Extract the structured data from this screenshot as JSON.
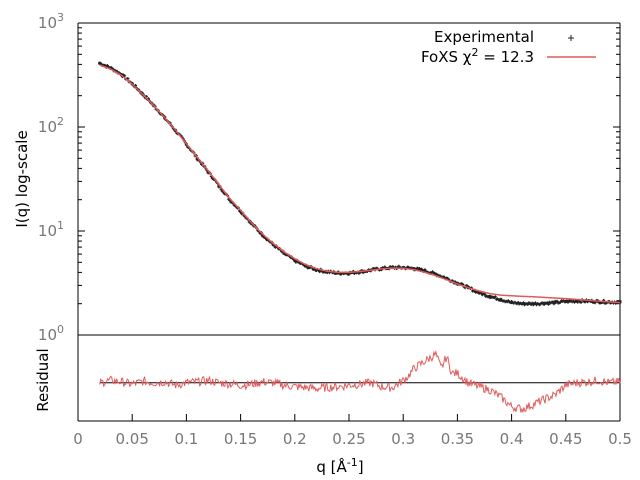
{
  "chart_data": [
    {
      "type": "scatter",
      "panel": "top",
      "ylabel": "I(q) log-scale",
      "yscale": "log",
      "ylim": [
        1,
        1000
      ],
      "xlim": [
        0,
        0.5
      ],
      "y_ticks": [
        {
          "value": 1,
          "base": "10",
          "exp": "0"
        },
        {
          "value": 10,
          "base": "10",
          "exp": "1"
        },
        {
          "value": 100,
          "base": "10",
          "exp": "2"
        },
        {
          "value": 1000,
          "base": "10",
          "exp": "3"
        }
      ],
      "legend": {
        "placement": "top-right",
        "experimental_label": "Experimental",
        "fit_label_prefix": "FoXS χ",
        "fit_label_exp": "2",
        "fit_label_suffix": " = 12.3"
      },
      "series": [
        {
          "name": "Experimental",
          "color": "#222222",
          "x": [
            0.02,
            0.03,
            0.04,
            0.05,
            0.06,
            0.07,
            0.08,
            0.09,
            0.1,
            0.11,
            0.12,
            0.13,
            0.14,
            0.15,
            0.16,
            0.17,
            0.18,
            0.19,
            0.2,
            0.21,
            0.22,
            0.23,
            0.24,
            0.25,
            0.26,
            0.27,
            0.28,
            0.29,
            0.3,
            0.31,
            0.32,
            0.33,
            0.34,
            0.35,
            0.36,
            0.37,
            0.38,
            0.39,
            0.4,
            0.41,
            0.42,
            0.43,
            0.44,
            0.45,
            0.46,
            0.47,
            0.48,
            0.49,
            0.5
          ],
          "y": [
            410,
            370,
            320,
            260,
            205,
            160,
            122,
            92,
            68,
            50,
            37,
            27,
            20,
            15.5,
            11.8,
            9.2,
            7.4,
            6.1,
            5.2,
            4.6,
            4.25,
            4.05,
            3.95,
            3.95,
            4.05,
            4.2,
            4.35,
            4.45,
            4.45,
            4.35,
            4.15,
            3.85,
            3.5,
            3.15,
            2.85,
            2.55,
            2.35,
            2.2,
            2.05,
            2.0,
            2.0,
            2.02,
            2.05,
            2.1,
            2.12,
            2.12,
            2.1,
            2.08,
            2.07
          ]
        },
        {
          "name": "FoXS",
          "color": "#e05a5a",
          "x": [
            0.02,
            0.03,
            0.04,
            0.05,
            0.06,
            0.07,
            0.08,
            0.09,
            0.1,
            0.11,
            0.12,
            0.13,
            0.14,
            0.15,
            0.16,
            0.17,
            0.18,
            0.19,
            0.2,
            0.21,
            0.22,
            0.23,
            0.24,
            0.25,
            0.26,
            0.27,
            0.28,
            0.29,
            0.3,
            0.31,
            0.32,
            0.33,
            0.34,
            0.35,
            0.36,
            0.37,
            0.38,
            0.39,
            0.4,
            0.41,
            0.42,
            0.43,
            0.44,
            0.45,
            0.46,
            0.47,
            0.48,
            0.49,
            0.5
          ],
          "y": [
            395,
            360,
            315,
            258,
            205,
            160,
            123,
            93,
            69,
            51,
            38,
            28,
            20.5,
            15.8,
            12.0,
            9.4,
            7.6,
            6.3,
            5.4,
            4.75,
            4.35,
            4.1,
            4.0,
            4.0,
            4.08,
            4.2,
            4.32,
            4.4,
            4.38,
            4.25,
            4.0,
            3.72,
            3.4,
            3.1,
            2.85,
            2.65,
            2.5,
            2.42,
            2.38,
            2.35,
            2.33,
            2.3,
            2.27,
            2.24,
            2.2,
            2.16,
            2.12,
            2.08,
            2.05
          ]
        }
      ]
    },
    {
      "type": "line",
      "panel": "bottom",
      "ylabel": "Residual",
      "xlabel": "q [Å",
      "xlabel_exp": "-1",
      "xlabel_suffix": "]",
      "xlim": [
        0,
        0.5
      ],
      "ylim": [
        -0.8,
        1.0
      ],
      "x_ticks": [
        {
          "value": 0,
          "label": "0"
        },
        {
          "value": 0.05,
          "label": "0.05"
        },
        {
          "value": 0.1,
          "label": "0.1"
        },
        {
          "value": 0.15,
          "label": "0.15"
        },
        {
          "value": 0.2,
          "label": "0.2"
        },
        {
          "value": 0.25,
          "label": "0.25"
        },
        {
          "value": 0.3,
          "label": "0.3"
        },
        {
          "value": 0.35,
          "label": "0.35"
        },
        {
          "value": 0.4,
          "label": "0.4"
        },
        {
          "value": 0.45,
          "label": "0.45"
        },
        {
          "value": 0.5,
          "label": "0.5"
        }
      ],
      "zero_line": 0,
      "series": [
        {
          "name": "Residual",
          "color": "#e05a5a",
          "x": [
            0.02,
            0.03,
            0.04,
            0.05,
            0.06,
            0.07,
            0.08,
            0.09,
            0.1,
            0.11,
            0.12,
            0.13,
            0.14,
            0.15,
            0.16,
            0.17,
            0.18,
            0.19,
            0.2,
            0.21,
            0.22,
            0.23,
            0.24,
            0.25,
            0.26,
            0.27,
            0.28,
            0.29,
            0.3,
            0.305,
            0.31,
            0.32,
            0.33,
            0.335,
            0.34,
            0.345,
            0.35,
            0.36,
            0.37,
            0.38,
            0.39,
            0.4,
            0.41,
            0.42,
            0.43,
            0.44,
            0.45,
            0.46,
            0.47,
            0.48,
            0.49,
            0.5
          ],
          "y": [
            0.0,
            0.05,
            0.02,
            -0.03,
            0.03,
            0.0,
            0.02,
            -0.05,
            0.0,
            0.02,
            0.05,
            0.0,
            -0.02,
            -0.05,
            -0.03,
            0.02,
            0.0,
            -0.05,
            -0.08,
            -0.1,
            -0.12,
            -0.1,
            -0.08,
            -0.05,
            -0.03,
            0.0,
            -0.08,
            -0.1,
            0.05,
            0.15,
            0.3,
            0.45,
            0.6,
            0.3,
            0.55,
            0.2,
            0.2,
            0.0,
            -0.08,
            -0.15,
            -0.3,
            -0.5,
            -0.55,
            -0.45,
            -0.35,
            -0.25,
            -0.05,
            0.0,
            0.02,
            0.05,
            0.0,
            0.02
          ]
        }
      ]
    }
  ]
}
